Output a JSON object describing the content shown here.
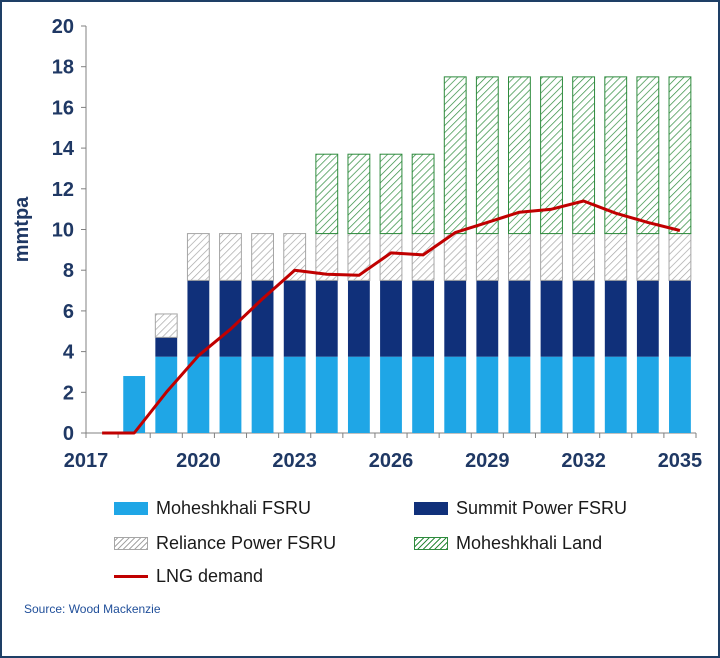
{
  "chart_data": {
    "type": "bar",
    "stacked": true,
    "ylabel": "mmtpa",
    "ylim": [
      0,
      20
    ],
    "yticks": [
      0,
      2,
      4,
      6,
      8,
      10,
      12,
      14,
      16,
      18,
      20
    ],
    "x_tick_labels": [
      "2017",
      "2020",
      "2023",
      "2026",
      "2029",
      "2032",
      "2035"
    ],
    "categories": [
      "2018",
      "2019",
      "2020",
      "2021",
      "2022",
      "2023",
      "2024",
      "2025",
      "2026",
      "2027",
      "2028",
      "2029",
      "2030",
      "2031",
      "2032",
      "2033",
      "2034",
      "2035"
    ],
    "series": [
      {
        "name": "Moheshkhali FSRU",
        "kind": "bar",
        "color": "#1fa6e6",
        "values": [
          2.8,
          3.75,
          3.75,
          3.75,
          3.75,
          3.75,
          3.75,
          3.75,
          3.75,
          3.75,
          3.75,
          3.75,
          3.75,
          3.75,
          3.75,
          3.75,
          3.75,
          3.75
        ]
      },
      {
        "name": "Summit Power FSRU",
        "kind": "bar",
        "color": "#10307a",
        "values": [
          0,
          0.95,
          3.75,
          3.75,
          3.75,
          3.75,
          3.75,
          3.75,
          3.75,
          3.75,
          3.75,
          3.75,
          3.75,
          3.75,
          3.75,
          3.75,
          3.75,
          3.75
        ]
      },
      {
        "name": "Reliance Power FSRU",
        "kind": "bar",
        "pattern": "hatch-grey",
        "color": "#a6a6a6",
        "values": [
          0,
          1.15,
          2.3,
          2.3,
          2.3,
          2.3,
          2.3,
          2.3,
          2.3,
          2.3,
          2.3,
          2.3,
          2.3,
          2.3,
          2.3,
          2.3,
          2.3,
          2.3
        ]
      },
      {
        "name": "Moheshkhali Land",
        "kind": "bar",
        "pattern": "hatch-green",
        "color": "#2e8b3d",
        "values": [
          0,
          0,
          0,
          0,
          0,
          0,
          3.9,
          3.9,
          3.9,
          3.9,
          7.7,
          7.7,
          7.7,
          7.7,
          7.7,
          7.7,
          7.7,
          7.7
        ]
      }
    ],
    "line": {
      "name": "LNG demand",
      "color": "#c00000",
      "x": [
        2017,
        2018,
        2019,
        2020,
        2021,
        2022,
        2023,
        2024,
        2025,
        2026,
        2027,
        2028,
        2029,
        2030,
        2031,
        2032,
        2033,
        2034,
        2035
      ],
      "values": [
        0,
        0,
        2.0,
        3.8,
        5.1,
        6.6,
        8.0,
        7.8,
        7.75,
        8.85,
        8.75,
        9.85,
        10.35,
        10.85,
        11.0,
        11.4,
        10.8,
        10.35,
        9.95
      ]
    },
    "legend_position": "bottom",
    "grid": false
  },
  "source": "Source: Wood Mackenzie"
}
